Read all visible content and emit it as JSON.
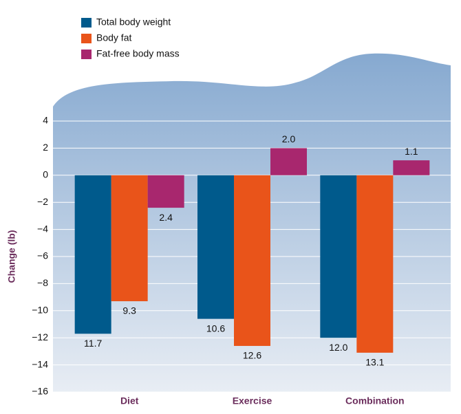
{
  "chart_data": {
    "type": "bar",
    "y_label": "Change (lb)",
    "categories": [
      "Diet",
      "Exercise",
      "Combination"
    ],
    "series": [
      {
        "name": "Total body weight",
        "color": "#005a8c",
        "values": [
          -11.7,
          -10.6,
          -12.0
        ],
        "value_labels": [
          "11.7",
          "10.6",
          "12.0"
        ]
      },
      {
        "name": "Body fat",
        "color": "#e9541a",
        "values": [
          -9.3,
          -12.6,
          -13.1
        ],
        "value_labels": [
          "9.3",
          "12.6",
          "13.1"
        ]
      },
      {
        "name": "Fat-free body mass",
        "color": "#a8276e",
        "values": [
          -2.4,
          2.0,
          1.1
        ],
        "value_labels": [
          "2.4",
          "2.0",
          "1.1"
        ]
      }
    ],
    "ylim": [
      -16,
      4
    ],
    "yticks": [
      {
        "value": -16,
        "label": "−16"
      },
      {
        "value": -14,
        "label": "−14"
      },
      {
        "value": -12,
        "label": "−12"
      },
      {
        "value": -10,
        "label": "−10"
      },
      {
        "value": -8,
        "label": "−8"
      },
      {
        "value": -6,
        "label": "−6"
      },
      {
        "value": -4,
        "label": "−4"
      },
      {
        "value": -2,
        "label": "−2"
      },
      0,
      2,
      4
    ],
    "grid": true
  }
}
